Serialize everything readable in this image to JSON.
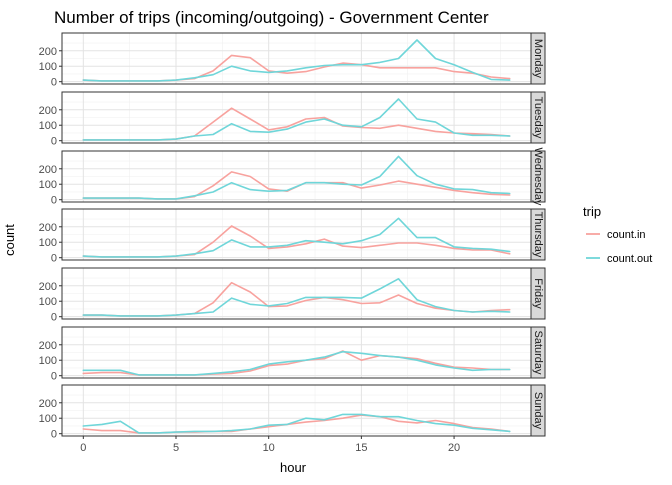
{
  "chart_data": {
    "type": "line",
    "title": "Number of trips (incoming/outgoing) - Government Center",
    "xlabel": "hour",
    "ylabel": "count",
    "xlim": [
      -1.15,
      24.15
    ],
    "ylim": [
      -15,
      315
    ],
    "x_ticks": [
      "0",
      "5",
      "10",
      "15",
      "20"
    ],
    "y_ticks": [
      "0",
      "100",
      "200"
    ],
    "legend": {
      "title": "trip",
      "position": "right",
      "entries": [
        {
          "label": "count.in",
          "color": "#F8A29E"
        },
        {
          "label": "count.out",
          "color": "#6FD6D9"
        }
      ]
    },
    "panels": [
      {
        "label": "Monday",
        "series": [
          {
            "name": "count.in",
            "x": [
              0,
              1,
              2,
              3,
              4,
              5,
              6,
              7,
              8,
              9,
              10,
              11,
              12,
              13,
              14,
              15,
              16,
              17,
              18,
              19,
              20,
              21,
              22,
              23
            ],
            "y": [
              10,
              5,
              5,
              5,
              5,
              10,
              20,
              70,
              170,
              155,
              70,
              55,
              65,
              95,
              120,
              110,
              90,
              90,
              90,
              90,
              65,
              55,
              30,
              20
            ]
          },
          {
            "name": "count.out",
            "x": [
              0,
              1,
              2,
              3,
              4,
              5,
              6,
              7,
              8,
              9,
              10,
              11,
              12,
              13,
              14,
              15,
              16,
              17,
              18,
              19,
              20,
              21,
              22,
              23
            ],
            "y": [
              10,
              5,
              5,
              5,
              5,
              10,
              25,
              45,
              100,
              70,
              60,
              70,
              90,
              105,
              110,
              110,
              125,
              150,
              270,
              150,
              110,
              60,
              15,
              10
            ]
          }
        ]
      },
      {
        "label": "Tuesday",
        "series": [
          {
            "name": "count.in",
            "x": [
              0,
              1,
              2,
              3,
              4,
              5,
              6,
              7,
              8,
              9,
              10,
              11,
              12,
              13,
              14,
              15,
              16,
              17,
              18,
              19,
              20,
              21,
              22,
              23
            ],
            "y": [
              5,
              5,
              5,
              5,
              5,
              10,
              30,
              120,
              210,
              140,
              70,
              90,
              140,
              150,
              95,
              85,
              80,
              100,
              80,
              60,
              50,
              45,
              40,
              30
            ]
          },
          {
            "name": "count.out",
            "x": [
              0,
              1,
              2,
              3,
              4,
              5,
              6,
              7,
              8,
              9,
              10,
              11,
              12,
              13,
              14,
              15,
              16,
              17,
              18,
              19,
              20,
              21,
              22,
              23
            ],
            "y": [
              5,
              5,
              5,
              5,
              5,
              10,
              30,
              40,
              110,
              60,
              55,
              75,
              120,
              140,
              100,
              90,
              150,
              270,
              140,
              120,
              50,
              35,
              35,
              30
            ]
          }
        ]
      },
      {
        "label": "Wednesday",
        "series": [
          {
            "name": "count.in",
            "x": [
              0,
              1,
              2,
              3,
              4,
              5,
              6,
              7,
              8,
              9,
              10,
              11,
              12,
              13,
              14,
              15,
              16,
              17,
              18,
              19,
              20,
              21,
              22,
              23
            ],
            "y": [
              10,
              10,
              10,
              10,
              5,
              5,
              20,
              90,
              180,
              150,
              70,
              55,
              110,
              110,
              110,
              75,
              95,
              120,
              100,
              80,
              60,
              45,
              35,
              30
            ]
          },
          {
            "name": "count.out",
            "x": [
              0,
              1,
              2,
              3,
              4,
              5,
              6,
              7,
              8,
              9,
              10,
              11,
              12,
              13,
              14,
              15,
              16,
              17,
              18,
              19,
              20,
              21,
              22,
              23
            ],
            "y": [
              10,
              10,
              10,
              10,
              5,
              5,
              25,
              50,
              110,
              65,
              55,
              60,
              110,
              110,
              100,
              95,
              150,
              280,
              155,
              100,
              70,
              65,
              45,
              40
            ]
          }
        ]
      },
      {
        "label": "Thursday",
        "series": [
          {
            "name": "count.in",
            "x": [
              0,
              1,
              2,
              3,
              4,
              5,
              6,
              7,
              8,
              9,
              10,
              11,
              12,
              13,
              14,
              15,
              16,
              17,
              18,
              19,
              20,
              21,
              22,
              23
            ],
            "y": [
              10,
              5,
              5,
              5,
              5,
              10,
              20,
              100,
              205,
              140,
              60,
              70,
              90,
              120,
              75,
              65,
              80,
              95,
              95,
              80,
              60,
              50,
              50,
              25
            ]
          },
          {
            "name": "count.out",
            "x": [
              0,
              1,
              2,
              3,
              4,
              5,
              6,
              7,
              8,
              9,
              10,
              11,
              12,
              13,
              14,
              15,
              16,
              17,
              18,
              19,
              20,
              21,
              22,
              23
            ],
            "y": [
              10,
              5,
              5,
              5,
              5,
              10,
              25,
              45,
              115,
              70,
              70,
              80,
              110,
              100,
              90,
              110,
              150,
              255,
              130,
              130,
              70,
              60,
              55,
              40
            ]
          }
        ]
      },
      {
        "label": "Friday",
        "series": [
          {
            "name": "count.in",
            "x": [
              0,
              1,
              2,
              3,
              4,
              5,
              6,
              7,
              8,
              9,
              10,
              11,
              12,
              13,
              14,
              15,
              16,
              17,
              18,
              19,
              20,
              21,
              22,
              23
            ],
            "y": [
              10,
              10,
              5,
              5,
              5,
              10,
              20,
              90,
              220,
              160,
              65,
              70,
              105,
              125,
              110,
              85,
              90,
              140,
              85,
              55,
              40,
              30,
              40,
              45
            ]
          },
          {
            "name": "count.out",
            "x": [
              0,
              1,
              2,
              3,
              4,
              5,
              6,
              7,
              8,
              9,
              10,
              11,
              12,
              13,
              14,
              15,
              16,
              17,
              18,
              19,
              20,
              21,
              22,
              23
            ],
            "y": [
              10,
              10,
              5,
              5,
              5,
              10,
              20,
              30,
              120,
              80,
              70,
              85,
              125,
              125,
              125,
              120,
              180,
              245,
              110,
              65,
              40,
              30,
              35,
              30
            ]
          }
        ]
      },
      {
        "label": "Saturday",
        "series": [
          {
            "name": "count.in",
            "x": [
              0,
              1,
              2,
              3,
              4,
              5,
              6,
              7,
              8,
              9,
              10,
              11,
              12,
              13,
              14,
              15,
              16,
              17,
              18,
              19,
              20,
              21,
              22,
              23
            ],
            "y": [
              15,
              20,
              20,
              5,
              5,
              5,
              5,
              10,
              15,
              30,
              65,
              75,
              100,
              110,
              160,
              100,
              130,
              120,
              110,
              80,
              55,
              50,
              40,
              40
            ]
          },
          {
            "name": "count.out",
            "x": [
              0,
              1,
              2,
              3,
              4,
              5,
              6,
              7,
              8,
              9,
              10,
              11,
              12,
              13,
              14,
              15,
              16,
              17,
              18,
              19,
              20,
              21,
              22,
              23
            ],
            "y": [
              35,
              35,
              35,
              5,
              5,
              5,
              5,
              15,
              25,
              40,
              75,
              90,
              100,
              120,
              155,
              145,
              130,
              120,
              100,
              70,
              50,
              35,
              40,
              40
            ]
          }
        ]
      },
      {
        "label": "Sunday",
        "series": [
          {
            "name": "count.in",
            "x": [
              0,
              1,
              2,
              3,
              4,
              5,
              6,
              7,
              8,
              9,
              10,
              11,
              12,
              13,
              14,
              15,
              16,
              17,
              18,
              19,
              20,
              21,
              22,
              23
            ],
            "y": [
              30,
              20,
              20,
              5,
              5,
              10,
              10,
              15,
              15,
              30,
              45,
              60,
              75,
              85,
              100,
              120,
              110,
              80,
              70,
              85,
              65,
              40,
              30,
              15
            ]
          },
          {
            "name": "count.out",
            "x": [
              0,
              1,
              2,
              3,
              4,
              5,
              6,
              7,
              8,
              9,
              10,
              11,
              12,
              13,
              14,
              15,
              16,
              17,
              18,
              19,
              20,
              21,
              22,
              23
            ],
            "y": [
              50,
              60,
              80,
              5,
              5,
              10,
              15,
              15,
              20,
              30,
              55,
              60,
              100,
              90,
              125,
              125,
              110,
              110,
              85,
              65,
              55,
              35,
              25,
              15
            ]
          }
        ]
      }
    ]
  }
}
